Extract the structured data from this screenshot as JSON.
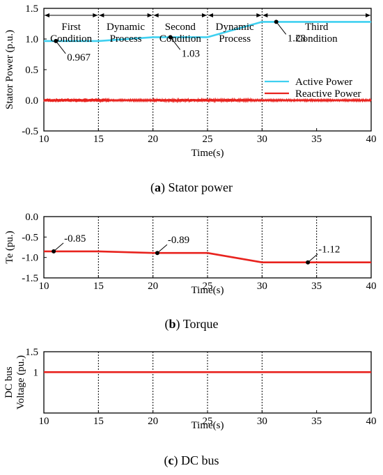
{
  "chart_data": [
    {
      "type": "line",
      "caption_tag": "a",
      "caption_text": "Stator power",
      "xlabel": "Time(s)",
      "ylabel": "Stator Power (p.u.)",
      "xlim": [
        10,
        40
      ],
      "ylim": [
        -0.5,
        1.5
      ],
      "xticks": [
        "10",
        "15",
        "20",
        "25",
        "30",
        "35",
        "40"
      ],
      "yticks": [
        "1.5",
        "1.0",
        "0.5",
        "0.0",
        "-0.5"
      ],
      "vlines": [
        15,
        20,
        25,
        30
      ],
      "segments": [
        {
          "label": "First Condition",
          "from": 10,
          "to": 15
        },
        {
          "label": "Dynamic Process",
          "from": 15,
          "to": 20
        },
        {
          "label": "Second Condition",
          "from": 20,
          "to": 25
        },
        {
          "label": "Dynamic Process",
          "from": 25,
          "to": 30
        },
        {
          "label": "Third Condition",
          "from": 30,
          "to": 40
        }
      ],
      "series": [
        {
          "name": "Active Power",
          "color": "#3fd0f0",
          "x": [
            10,
            15,
            20,
            25,
            30,
            40
          ],
          "y": [
            0.967,
            0.967,
            1.03,
            1.03,
            1.28,
            1.28
          ]
        },
        {
          "name": "Reactive Power",
          "color": "#e8231e",
          "x": [
            10,
            15,
            20,
            25,
            30,
            40
          ],
          "y": [
            0.0,
            0.0,
            0.0,
            0.0,
            0.0,
            0.0
          ]
        }
      ],
      "annotations": [
        {
          "text": "0.967",
          "x": 11.1,
          "y": 0.967
        },
        {
          "text": "1.03",
          "x": 21.6,
          "y": 1.03
        },
        {
          "text": "1.28",
          "x": 31.3,
          "y": 1.28
        }
      ],
      "legend_position": "right"
    },
    {
      "type": "line",
      "caption_tag": "b",
      "caption_text": "Torque",
      "xlabel": "Time(s)",
      "ylabel": "Te (pu.)",
      "xlim": [
        10,
        40
      ],
      "ylim": [
        -1.5,
        0.0
      ],
      "xticks": [
        "10",
        "15",
        "20",
        "25",
        "30",
        "35",
        "40"
      ],
      "yticks": [
        "0.0",
        "-0.5",
        "-1.0",
        "-1.5"
      ],
      "vlines": [
        15,
        20,
        25,
        30,
        35
      ],
      "series": [
        {
          "name": "",
          "color": "#e8231e",
          "x": [
            10,
            15,
            20,
            25,
            30,
            40
          ],
          "y": [
            -0.85,
            -0.85,
            -0.89,
            -0.89,
            -1.12,
            -1.12
          ]
        }
      ],
      "annotations": [
        {
          "text": "-0.85",
          "x": 10.9,
          "y": -0.85
        },
        {
          "text": "-0.89",
          "x": 20.4,
          "y": -0.89
        },
        {
          "text": "-1.12",
          "x": 34.2,
          "y": -1.12
        }
      ]
    },
    {
      "type": "line",
      "caption_tag": "c",
      "caption_text": "DC bus",
      "xlabel": "Time(s)",
      "ylabel": "DC bus Voltage (pu.)",
      "ylabel_lines": [
        "DC bus",
        "Voltage (pu.)"
      ],
      "xlim": [
        10,
        40
      ],
      "ylim": [
        0.0,
        1.5
      ],
      "xticks": [
        "10",
        "15",
        "20",
        "25",
        "30",
        "35",
        "40"
      ],
      "yticks": [
        "1.5",
        "1"
      ],
      "vlines": [
        15,
        20,
        25,
        30
      ],
      "series": [
        {
          "name": "",
          "color": "#e8231e",
          "x": [
            10,
            40
          ],
          "y": [
            1.0,
            1.0
          ]
        }
      ]
    }
  ]
}
